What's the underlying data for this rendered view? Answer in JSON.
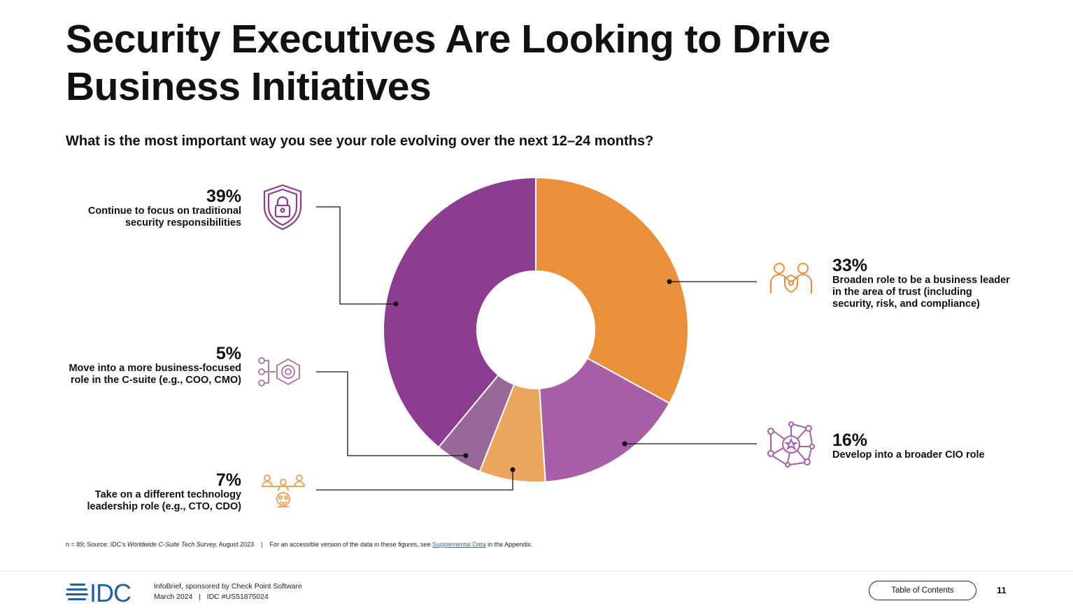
{
  "title": "Security Executives Are Looking to Drive Business Initiatives",
  "chart_data": {
    "type": "pie",
    "subtype": "donut",
    "title": "What is the most important way you see your role evolving over the next 12–24 months?",
    "slices": [
      {
        "label": "Broaden role to be a business leader in the area of trust (including security, risk, and compliance)",
        "pct_label": "33%",
        "value": 33,
        "color": "#E8913A",
        "icon": "handshake-shield-icon"
      },
      {
        "label": "Develop into a broader CIO role",
        "pct_label": "16%",
        "value": 16,
        "color": "#A65EA6",
        "icon": "network-star-icon"
      },
      {
        "label": "Take on a different technology leadership role (e.g., CTO, CDO)",
        "pct_label": "7%",
        "value": 7,
        "color": "#E9A65C",
        "icon": "leadership-group-icon"
      },
      {
        "label": "Move into a more business-focused role in the C-suite (e.g., COO, CMO)",
        "pct_label": "5%",
        "value": 5,
        "color": "#9A6799",
        "icon": "hexagon-circuit-icon"
      },
      {
        "label": "Continue to focus on traditional security responsibilities",
        "pct_label": "39%",
        "value": 39,
        "color": "#8C3D8F",
        "icon": "shield-lock-icon"
      }
    ]
  },
  "source": {
    "prefix": "n = 89; Source: IDC's ",
    "survey": "Worldwide C-Suite Tech Survey,",
    "suffix": " August 2023    |    For an accessible version of the data in these figures, see ",
    "link": "Supplemental Data",
    "end": " in the Appendix."
  },
  "footer": {
    "logo": "IDC",
    "line1": "InfoBrief, sponsored by Check Point Software",
    "line2": "March 2024   |   IDC #US51875024",
    "toc": "Table of Contents",
    "page": "11"
  }
}
